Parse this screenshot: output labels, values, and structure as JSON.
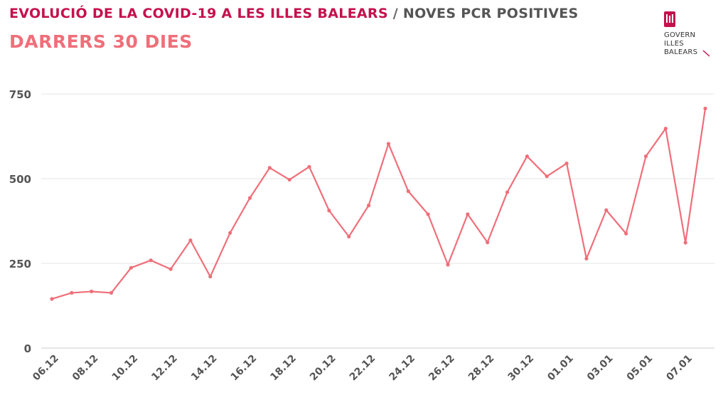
{
  "header": {
    "title_part1": "EVOLUCIÓ DE LA COVID-19 A LES ILLES BALEARS",
    "title_sep": " / ",
    "title_part2": "NOVES PCR POSITIVES",
    "subtitle": "DARRERS 30 DIES"
  },
  "logo": {
    "text": "GOVERN\nILLES\nBALEARS",
    "icon": "govern-illes-balears-logo-icon",
    "color": "#c4114e"
  },
  "colors": {
    "line": "#ef6f7a",
    "grid": "#e6e6e6",
    "tick_text": "#555555",
    "title_accent": "#c4114e"
  },
  "chart_data": {
    "type": "line",
    "title": "EVOLUCIÓ DE LA COVID-19 A LES ILLES BALEARS / NOVES PCR POSITIVES",
    "subtitle": "DARRERS 30 DIES",
    "xlabel": "",
    "ylabel": "",
    "ylim": [
      0,
      750
    ],
    "yticks": [
      0,
      250,
      500,
      750
    ],
    "grid": true,
    "x": [
      "06.12",
      "07.12",
      "08.12",
      "09.12",
      "10.12",
      "11.12",
      "12.12",
      "13.12",
      "14.12",
      "15.12",
      "16.12",
      "17.12",
      "18.12",
      "19.12",
      "20.12",
      "21.12",
      "22.12",
      "23.12",
      "24.12",
      "25.12",
      "26.12",
      "27.12",
      "28.12",
      "29.12",
      "30.12",
      "31.12",
      "01.01",
      "02.01",
      "03.01",
      "04.01",
      "05.01",
      "06.01",
      "07.01",
      "08.01"
    ],
    "xtick_labels": [
      "06.12",
      "08.12",
      "10.12",
      "12.12",
      "14.12",
      "16.12",
      "18.12",
      "20.12",
      "22.12",
      "24.12",
      "26.12",
      "28.12",
      "30.12",
      "01.01",
      "03.01",
      "05.01",
      "07.01"
    ],
    "series": [
      {
        "values": [
          145,
          163,
          167,
          163,
          237,
          259,
          233,
          318,
          211,
          340,
          443,
          532,
          497,
          535,
          406,
          329,
          421,
          603,
          463,
          395,
          246,
          395,
          312,
          460,
          566,
          507,
          545,
          264,
          407,
          338,
          566,
          648,
          311,
          707
        ]
      }
    ]
  }
}
